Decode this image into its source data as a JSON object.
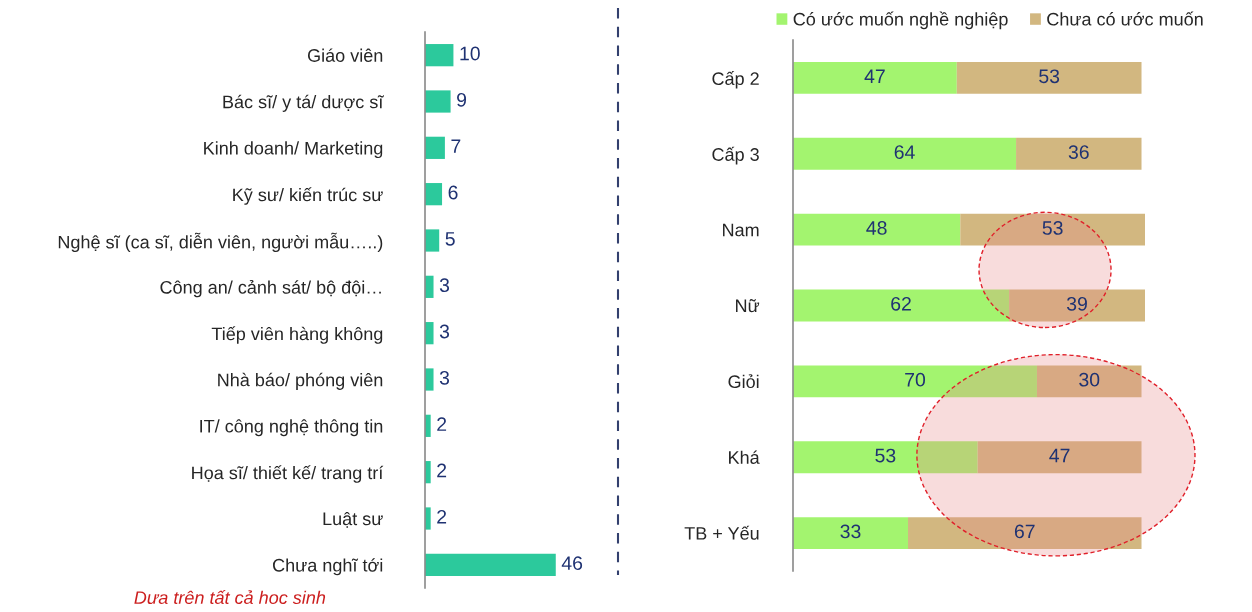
{
  "chart_data": [
    {
      "type": "bar",
      "orientation": "horizontal",
      "categories": [
        "Giáo viên",
        "Bác sĩ/ y tá/ dược sĩ",
        "Kinh doanh/ Marketing",
        "Kỹ sư/ kiến trúc sư",
        "Nghệ sĩ (ca sĩ, diễn viên, người mẫu…..)",
        "Công an/ cảnh sát/ bộ đội…",
        "Tiếp viên hàng không",
        "Nhà báo/ phóng viên",
        "IT/ công nghệ thông tin",
        "Họa sĩ/ thiết kế/ trang trí",
        "Luật sư",
        "Chưa nghĩ tới"
      ],
      "values": [
        10,
        9,
        7,
        6,
        5,
        3,
        3,
        3,
        2,
        2,
        2,
        46
      ],
      "color": "#2cc99c",
      "data_labels": true,
      "tick_labels": "y",
      "annotations": [
        "Dưa trên tất cả hoc sinh"
      ]
    },
    {
      "type": "bar",
      "orientation": "horizontal",
      "stacked": true,
      "categories": [
        "Cấp 2",
        "Cấp 3",
        "Nam",
        "Nữ",
        "Giỏi",
        "Khá",
        "TB + Yếu"
      ],
      "series": [
        {
          "name": "Có ước muốn nghề nghiệp",
          "color": "#a3f46f",
          "values": [
            47,
            64,
            48,
            62,
            70,
            53,
            33
          ]
        },
        {
          "name": "Chưa có ước muốn",
          "color": "#d2b780",
          "values": [
            53,
            36,
            53,
            39,
            30,
            47,
            67
          ]
        }
      ],
      "data_labels": true,
      "tick_labels": "y",
      "legend": "top"
    }
  ]
}
